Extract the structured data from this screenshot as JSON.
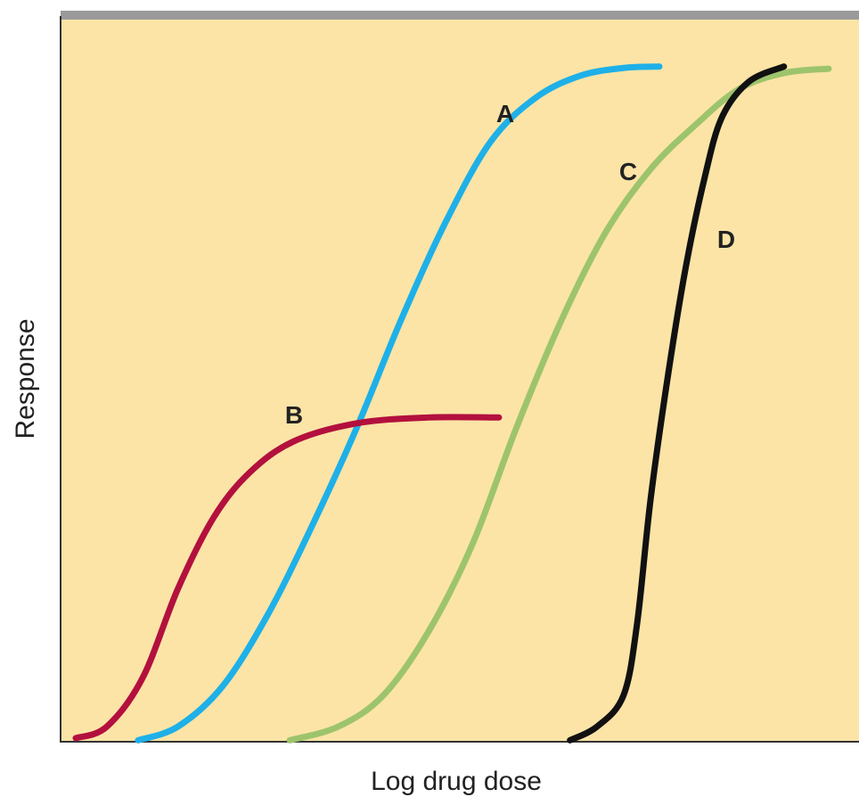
{
  "chart_data": {
    "type": "line",
    "x_label": "Log drug dose",
    "y_label": "Response",
    "xlim": [
      0,
      100
    ],
    "ylim": [
      0,
      100
    ],
    "grid": false,
    "series": [
      {
        "name": "A",
        "color": "#1eb0e8",
        "x": [
          9.7,
          14.7,
          20.3,
          25.9,
          31.5,
          37.1,
          42.6,
          48.2,
          53.8,
          59.4,
          65.0,
          70.5,
          75.0
        ],
        "values": [
          0.2,
          2.1,
          7.7,
          17.5,
          29.9,
          43.5,
          58.3,
          71.9,
          83.0,
          89.1,
          92.2,
          93.3,
          93.5
        ]
      },
      {
        "name": "B",
        "color": "#b3103e",
        "x": [
          1.9,
          5.8,
          10.3,
          14.7,
          19.2,
          23.7,
          29.2,
          37.1,
          46.0,
          54.9
        ],
        "values": [
          0.5,
          2.1,
          8.9,
          21.2,
          31.1,
          37.3,
          41.6,
          44.1,
          44.9,
          44.9
        ]
      },
      {
        "name": "C",
        "color": "#9dc46c",
        "x": [
          28.7,
          34.8,
          40.4,
          46.0,
          51.6,
          57.1,
          62.7,
          68.3,
          73.9,
          79.5,
          85.0,
          90.6,
          96.2
        ],
        "values": [
          0.2,
          2.1,
          6.4,
          15.1,
          27.4,
          43.5,
          58.3,
          70.6,
          79.3,
          85.4,
          90.4,
          92.6,
          93.2
        ]
      },
      {
        "name": "D",
        "color": "#111111",
        "x": [
          63.8,
          67.2,
          70.5,
          72.2,
          73.9,
          76.1,
          78.3,
          80.6,
          82.8,
          86.2,
          90.6
        ],
        "values": [
          0.2,
          2.1,
          6.4,
          16.3,
          33.6,
          50.9,
          65.7,
          77.8,
          86.4,
          91.4,
          93.5
        ]
      }
    ]
  }
}
